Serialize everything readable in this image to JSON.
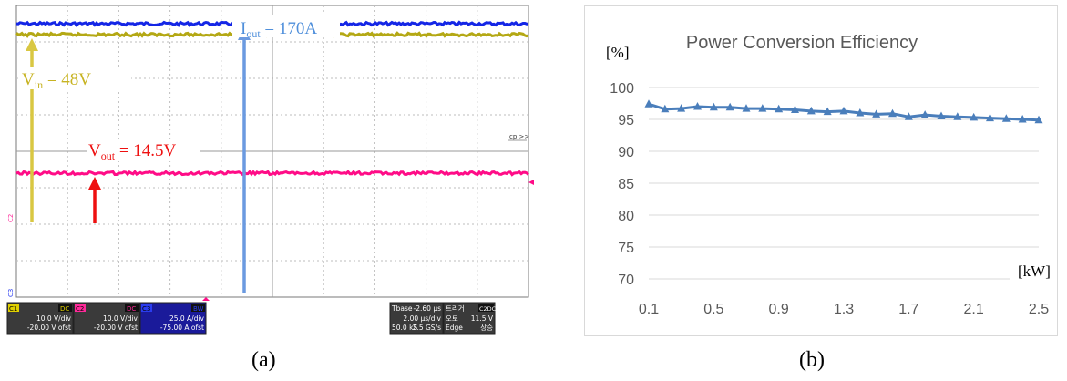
{
  "panels": {
    "a": {
      "caption": "(a)"
    },
    "b": {
      "caption": "(b)"
    }
  },
  "chart_data": [
    {
      "id": "oscilloscope",
      "type": "line",
      "title": "",
      "annotations": [
        {
          "name": "I",
          "sub": "out",
          "text": " = 170A",
          "color": "#4f8fdb"
        },
        {
          "name": "V",
          "sub": "in",
          "text": " = 48V",
          "color": "#c7b322"
        },
        {
          "name": "V",
          "sub": "out",
          "text": " = 14.5V",
          "color": "#ee1010"
        }
      ],
      "traces": [
        {
          "channel": "C3",
          "color": "#1426e6",
          "level_div": 7.5
        },
        {
          "channel": "C1",
          "color": "#b4a814",
          "level_div": 7.2
        },
        {
          "channel": "C2",
          "color": "#ff0c87",
          "level_div": 3.4
        }
      ],
      "grid": {
        "h_div": 10,
        "v_div": 8,
        "on": true
      },
      "screen_labels": {
        "cursor_tag": "cp >>",
        "c2_side": "C2",
        "c3_side": "C3"
      },
      "status_bar": {
        "ch1": {
          "label": "C1",
          "coupling": "DC",
          "scale": "10.0 V/div",
          "offset": "-20.00 V ofst",
          "color": "#e0d000"
        },
        "ch2": {
          "label": "C2",
          "coupling": "DC",
          "scale": "10.0 V/div",
          "offset": "-20.00 V ofst",
          "color": "#ff2a9a"
        },
        "ch3": {
          "label": "C3",
          "coupling": "BW",
          "scale": "25.0 A/div",
          "offset": "-75.00 A ofst",
          "color": "#2a3cf0"
        },
        "timebase": {
          "label": "Tbase",
          "delay": "-2.60 μs",
          "scale": "2.00 μs/div",
          "samples": "50.0 kS",
          "rate": "2.5 GS/s"
        },
        "trigger": {
          "label": "트리거",
          "badge": "C2DC",
          "mode": "오토",
          "type": "Edge",
          "level": "11.5 V",
          "slope": "상승"
        }
      }
    },
    {
      "id": "efficiency",
      "type": "line",
      "title": "Power Conversion Efficiency",
      "xlabel": "[kW]",
      "ylabel": "[%]",
      "x_tick_labels": [
        "0.1",
        "0.5",
        "0.9",
        "1.3",
        "1.7",
        "2.1",
        "2.5"
      ],
      "x_ticks": [
        0.1,
        0.5,
        0.9,
        1.3,
        1.7,
        2.1,
        2.5
      ],
      "y_tick_labels": [
        "70",
        "75",
        "80",
        "85",
        "90",
        "95",
        "100"
      ],
      "xlim": [
        0.1,
        2.5
      ],
      "ylim": [
        70,
        100
      ],
      "grid": "horizontal",
      "legend": "none",
      "series": [
        {
          "color": "#4a7ebb",
          "x": [
            0.1,
            0.2,
            0.3,
            0.4,
            0.5,
            0.6,
            0.7,
            0.8,
            0.9,
            1.0,
            1.1,
            1.2,
            1.3,
            1.4,
            1.5,
            1.6,
            1.7,
            1.8,
            1.9,
            2.0,
            2.1,
            2.2,
            2.3,
            2.4,
            2.5
          ],
          "y": [
            97.4,
            96.6,
            96.7,
            97.0,
            96.9,
            96.9,
            96.7,
            96.7,
            96.6,
            96.5,
            96.3,
            96.2,
            96.3,
            96.0,
            95.8,
            95.9,
            95.4,
            95.7,
            95.5,
            95.4,
            95.3,
            95.2,
            95.1,
            95.0,
            94.9
          ]
        }
      ]
    }
  ]
}
